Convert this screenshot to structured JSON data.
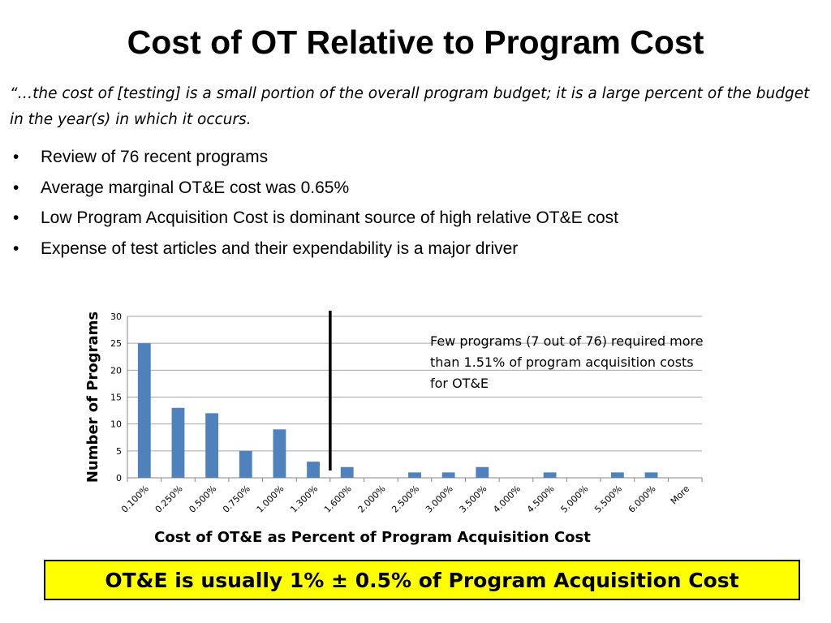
{
  "slide": {
    "title": "Cost of OT Relative to Program Cost",
    "quote": "“…the cost of [testing] is a small portion of the overall program budget; it is a large percent of the budget in the year(s) in which it occurs.",
    "bullet_glyph": "•",
    "bullets": [
      "Review of 76 recent programs",
      "Average marginal OT&E cost was 0.65%",
      "Low Program Acquisition Cost is dominant source of high relative OT&E cost",
      "Expense of test articles and their expendability is a major driver"
    ],
    "annotation": "Few programs (7 out of 76) required more than 1.51% of program acquisition costs for OT&E",
    "callout": "OT&E is usually 1% ± 0.5% of Program Acquisition Cost"
  },
  "chart_data": {
    "type": "bar",
    "title": "",
    "xlabel": "Cost of OT&E as Percent of Program Acquisition Cost",
    "ylabel": "Number of Programs",
    "categories": [
      "0.100%",
      "0.250%",
      "0.500%",
      "0.750%",
      "1.000%",
      "1.300%",
      "1.600%",
      "2.000%",
      "2.500%",
      "3.000%",
      "3.500%",
      "4.000%",
      "4.500%",
      "5.000%",
      "5.500%",
      "6.000%",
      "More"
    ],
    "values": [
      25,
      13,
      12,
      5,
      9,
      3,
      2,
      0,
      1,
      1,
      2,
      0,
      1,
      0,
      1,
      1,
      0
    ],
    "ylim": [
      0,
      30
    ],
    "yticks": [
      0,
      5,
      10,
      15,
      20,
      25,
      30
    ],
    "grid": true,
    "legend": "none",
    "bar_color": "#4f81bd",
    "marker_line_after_category": "1.300%"
  }
}
